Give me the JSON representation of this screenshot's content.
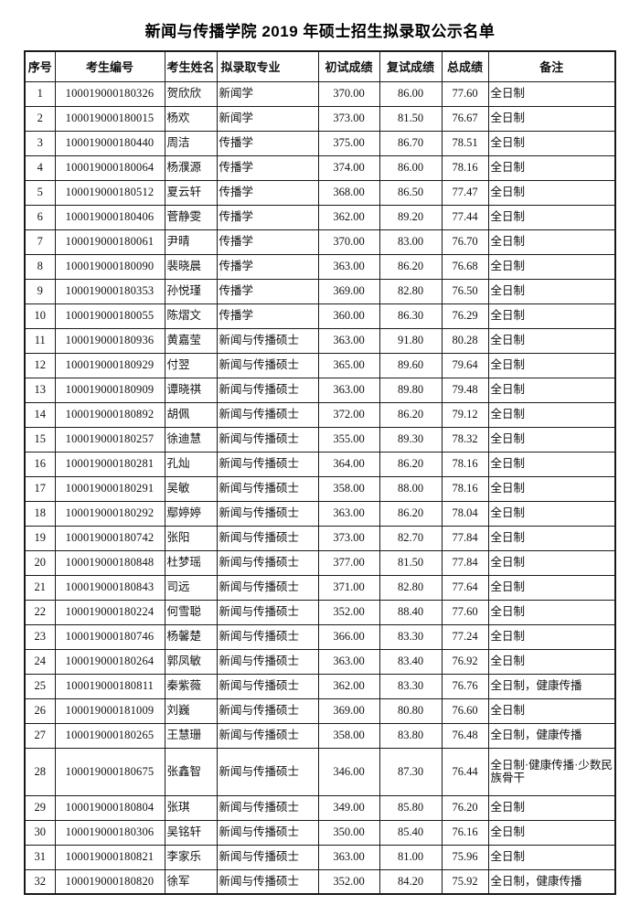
{
  "page": {
    "title": "新闻与传播学院 2019 年硕士招生拟录取公示名单"
  },
  "table": {
    "headers": [
      "序号",
      "考生编号",
      "考生姓名",
      "拟录取专业",
      "初试成绩",
      "复试成绩",
      "总成绩",
      "备注"
    ],
    "rows": [
      {
        "no": "1",
        "id": "100019000180326",
        "name": "贺欣欣",
        "major": "新闻学",
        "initial": "370.00",
        "retest": "86.00",
        "total": "77.60",
        "remark": "全日制"
      },
      {
        "no": "2",
        "id": "100019000180015",
        "name": "杨欢",
        "major": "新闻学",
        "initial": "373.00",
        "retest": "81.50",
        "total": "76.67",
        "remark": "全日制"
      },
      {
        "no": "3",
        "id": "100019000180440",
        "name": "周洁",
        "major": "传播学",
        "initial": "375.00",
        "retest": "86.70",
        "total": "78.51",
        "remark": "全日制"
      },
      {
        "no": "4",
        "id": "100019000180064",
        "name": "杨濮源",
        "major": "传播学",
        "initial": "374.00",
        "retest": "86.00",
        "total": "78.16",
        "remark": "全日制"
      },
      {
        "no": "5",
        "id": "100019000180512",
        "name": "夏云轩",
        "major": "传播学",
        "initial": "368.00",
        "retest": "86.50",
        "total": "77.47",
        "remark": "全日制"
      },
      {
        "no": "6",
        "id": "100019000180406",
        "name": "菅静雯",
        "major": "传播学",
        "initial": "362.00",
        "retest": "89.20",
        "total": "77.44",
        "remark": "全日制"
      },
      {
        "no": "7",
        "id": "100019000180061",
        "name": "尹晴",
        "major": "传播学",
        "initial": "370.00",
        "retest": "83.00",
        "total": "76.70",
        "remark": "全日制"
      },
      {
        "no": "8",
        "id": "100019000180090",
        "name": "裴晓晨",
        "major": "传播学",
        "initial": "363.00",
        "retest": "86.20",
        "total": "76.68",
        "remark": "全日制"
      },
      {
        "no": "9",
        "id": "100019000180353",
        "name": "孙悦瑾",
        "major": "传播学",
        "initial": "369.00",
        "retest": "82.80",
        "total": "76.50",
        "remark": "全日制"
      },
      {
        "no": "10",
        "id": "100019000180055",
        "name": "陈熠文",
        "major": "传播学",
        "initial": "360.00",
        "retest": "86.30",
        "total": "76.29",
        "remark": "全日制"
      },
      {
        "no": "11",
        "id": "100019000180936",
        "name": "黄嘉莹",
        "major": "新闻与传播硕士",
        "initial": "363.00",
        "retest": "91.80",
        "total": "80.28",
        "remark": "全日制"
      },
      {
        "no": "12",
        "id": "100019000180929",
        "name": "付翌",
        "major": "新闻与传播硕士",
        "initial": "365.00",
        "retest": "89.60",
        "total": "79.64",
        "remark": "全日制"
      },
      {
        "no": "13",
        "id": "100019000180909",
        "name": "谭晓祺",
        "major": "新闻与传播硕士",
        "initial": "363.00",
        "retest": "89.80",
        "total": "79.48",
        "remark": "全日制"
      },
      {
        "no": "14",
        "id": "100019000180892",
        "name": "胡佩",
        "major": "新闻与传播硕士",
        "initial": "372.00",
        "retest": "86.20",
        "total": "79.12",
        "remark": "全日制"
      },
      {
        "no": "15",
        "id": "100019000180257",
        "name": "徐迪慧",
        "major": "新闻与传播硕士",
        "initial": "355.00",
        "retest": "89.30",
        "total": "78.32",
        "remark": "全日制"
      },
      {
        "no": "16",
        "id": "100019000180281",
        "name": "孔灿",
        "major": "新闻与传播硕士",
        "initial": "364.00",
        "retest": "86.20",
        "total": "78.16",
        "remark": "全日制"
      },
      {
        "no": "17",
        "id": "100019000180291",
        "name": "吴敏",
        "major": "新闻与传播硕士",
        "initial": "358.00",
        "retest": "88.00",
        "total": "78.16",
        "remark": "全日制"
      },
      {
        "no": "18",
        "id": "100019000180292",
        "name": "鄢婷婷",
        "major": "新闻与传播硕士",
        "initial": "363.00",
        "retest": "86.20",
        "total": "78.04",
        "remark": "全日制"
      },
      {
        "no": "19",
        "id": "100019000180742",
        "name": "张阳",
        "major": "新闻与传播硕士",
        "initial": "373.00",
        "retest": "82.70",
        "total": "77.84",
        "remark": "全日制"
      },
      {
        "no": "20",
        "id": "100019000180848",
        "name": "杜梦瑶",
        "major": "新闻与传播硕士",
        "initial": "377.00",
        "retest": "81.50",
        "total": "77.84",
        "remark": "全日制"
      },
      {
        "no": "21",
        "id": "100019000180843",
        "name": "司远",
        "major": "新闻与传播硕士",
        "initial": "371.00",
        "retest": "82.80",
        "total": "77.64",
        "remark": "全日制"
      },
      {
        "no": "22",
        "id": "100019000180224",
        "name": "何雪聪",
        "major": "新闻与传播硕士",
        "initial": "352.00",
        "retest": "88.40",
        "total": "77.60",
        "remark": "全日制"
      },
      {
        "no": "23",
        "id": "100019000180746",
        "name": "杨馨楚",
        "major": "新闻与传播硕士",
        "initial": "366.00",
        "retest": "83.30",
        "total": "77.24",
        "remark": "全日制"
      },
      {
        "no": "24",
        "id": "100019000180264",
        "name": "郭凤敏",
        "major": "新闻与传播硕士",
        "initial": "363.00",
        "retest": "83.40",
        "total": "76.92",
        "remark": "全日制"
      },
      {
        "no": "25",
        "id": "100019000180811",
        "name": "秦紫薇",
        "major": "新闻与传播硕士",
        "initial": "362.00",
        "retest": "83.30",
        "total": "76.76",
        "remark": "全日制，健康传播"
      },
      {
        "no": "26",
        "id": "100019000181009",
        "name": "刘巍",
        "major": "新闻与传播硕士",
        "initial": "369.00",
        "retest": "80.80",
        "total": "76.60",
        "remark": "全日制"
      },
      {
        "no": "27",
        "id": "100019000180265",
        "name": "王慧珊",
        "major": "新闻与传播硕士",
        "initial": "358.00",
        "retest": "83.80",
        "total": "76.48",
        "remark": "全日制，健康传播"
      },
      {
        "no": "28",
        "id": "100019000180675",
        "name": "张鑫智",
        "major": "新闻与传播硕士",
        "initial": "346.00",
        "retest": "87.30",
        "total": "76.44",
        "remark": "全日制·健康传播·少数民族骨干",
        "remark_small": true
      },
      {
        "no": "29",
        "id": "100019000180804",
        "name": "张琪",
        "major": "新闻与传播硕士",
        "initial": "349.00",
        "retest": "85.80",
        "total": "76.20",
        "remark": "全日制"
      },
      {
        "no": "30",
        "id": "100019000180306",
        "name": "吴铭轩",
        "major": "新闻与传播硕士",
        "initial": "350.00",
        "retest": "85.40",
        "total": "76.16",
        "remark": "全日制"
      },
      {
        "no": "31",
        "id": "100019000180821",
        "name": "李家乐",
        "major": "新闻与传播硕士",
        "initial": "363.00",
        "retest": "81.00",
        "total": "75.96",
        "remark": "全日制"
      },
      {
        "no": "32",
        "id": "100019000180820",
        "name": "徐军",
        "major": "新闻与传播硕士",
        "initial": "352.00",
        "retest": "84.20",
        "total": "75.92",
        "remark": "全日制，健康传播"
      }
    ]
  }
}
